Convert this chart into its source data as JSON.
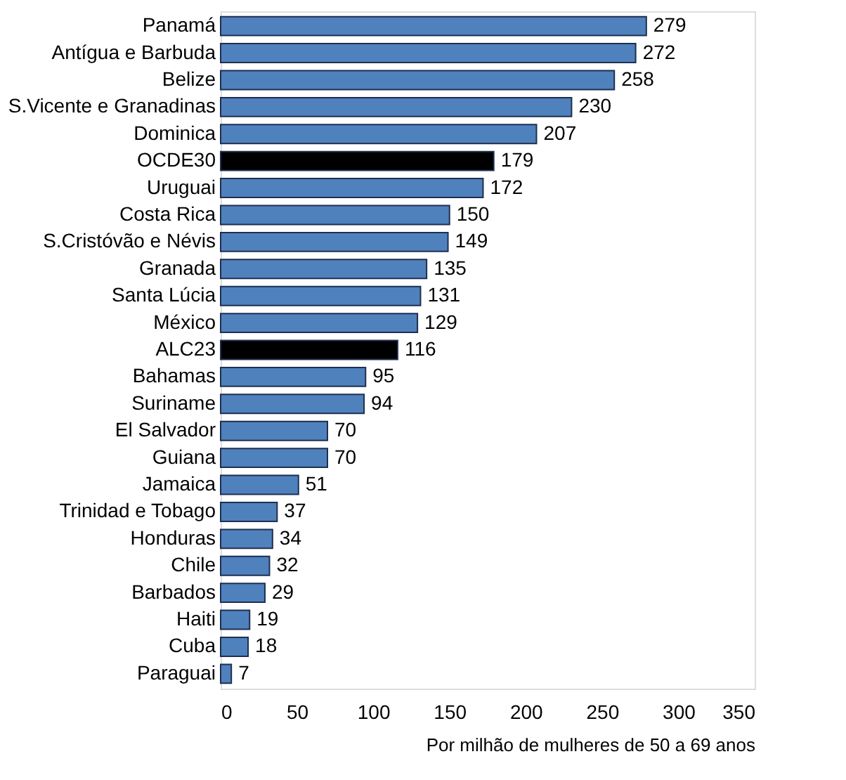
{
  "chart_data": {
    "type": "bar",
    "orientation": "horizontal",
    "xlabel": "Por milhão de mulheres de 50 a 69 anos",
    "categories": [
      "Panamá",
      "Antígua e Barbuda",
      "Belize",
      "S.Vicente e Granadinas",
      "Dominica",
      "OCDE30",
      "Uruguai",
      "Costa Rica",
      "S.Cristóvão e Névis",
      "Granada",
      "Santa Lúcia",
      "México",
      "ALC23",
      "Bahamas",
      "Suriname",
      "El Salvador",
      "Guiana",
      "Jamaica",
      "Trinidad e Tobago",
      "Honduras",
      "Chile",
      "Barbados",
      "Haiti",
      "Cuba",
      "Paraguai"
    ],
    "values": [
      279,
      272,
      258,
      230,
      207,
      179,
      172,
      150,
      149,
      135,
      131,
      129,
      116,
      95,
      94,
      70,
      70,
      51,
      37,
      34,
      32,
      29,
      19,
      18,
      7
    ],
    "colors": [
      "#4f81bd",
      "#4f81bd",
      "#4f81bd",
      "#4f81bd",
      "#4f81bd",
      "#000000",
      "#4f81bd",
      "#4f81bd",
      "#4f81bd",
      "#4f81bd",
      "#4f81bd",
      "#4f81bd",
      "#000000",
      "#4f81bd",
      "#4f81bd",
      "#4f81bd",
      "#4f81bd",
      "#4f81bd",
      "#4f81bd",
      "#4f81bd",
      "#4f81bd",
      "#4f81bd",
      "#4f81bd",
      "#4f81bd",
      "#4f81bd"
    ],
    "xlim": [
      0,
      350
    ],
    "xticks": [
      0,
      50,
      100,
      150,
      200,
      250,
      300,
      350
    ],
    "data_labels": true,
    "grid": false
  }
}
